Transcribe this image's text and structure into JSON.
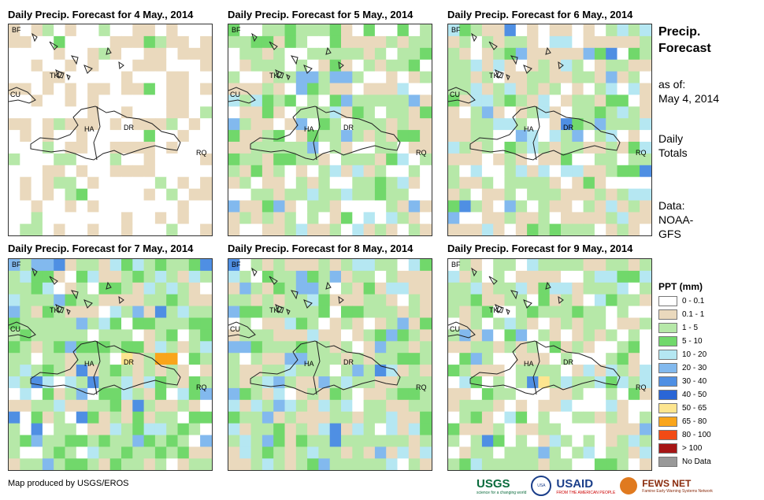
{
  "panels": [
    {
      "title": "Daily Precip. Forecast for 4 May., 2014",
      "pattern": 0
    },
    {
      "title": "Daily Precip. Forecast for 5 May., 2014",
      "pattern": 1
    },
    {
      "title": "Daily Precip. Forecast for 6 May., 2014",
      "pattern": 2
    },
    {
      "title": "Daily Precip. Forecast for 7 May., 2014",
      "pattern": 3
    },
    {
      "title": "Daily Precip. Forecast for 8 May., 2014",
      "pattern": 4
    },
    {
      "title": "Daily Precip. Forecast for 9 May., 2014",
      "pattern": 5
    }
  ],
  "map_labels": {
    "bf": "BF",
    "cu": "CU",
    "tk": "TK",
    "ha": "HA",
    "dr": "DR",
    "rq": "RQ"
  },
  "side_info": {
    "heading_line1": "Precip.",
    "heading_line2": "Forecast",
    "asof_label": "as of:",
    "asof_date": "May 4, 2014",
    "daily_line1": "Daily",
    "daily_line2": "Totals",
    "data_label": "Data:",
    "source_line1": "NOAA-",
    "source_line2": "GFS"
  },
  "legend": {
    "title": "PPT (mm)",
    "items": [
      {
        "label": "0 - 0.1",
        "color": "#ffffff"
      },
      {
        "label": "0.1 - 1",
        "color": "#ead9bd"
      },
      {
        "label": "1 - 5",
        "color": "#b6e8a8"
      },
      {
        "label": "5 - 10",
        "color": "#71d86b"
      },
      {
        "label": "10 - 20",
        "color": "#b5e7f2"
      },
      {
        "label": "20 - 30",
        "color": "#82b9ee"
      },
      {
        "label": "30 - 40",
        "color": "#4f8fe3"
      },
      {
        "label": "40 - 50",
        "color": "#2a66d6"
      },
      {
        "label": "50 - 65",
        "color": "#fde58f"
      },
      {
        "label": "65 - 80",
        "color": "#f9a51b"
      },
      {
        "label": "80 - 100",
        "color": "#f24b15"
      },
      {
        "label": "> 100",
        "color": "#a61515"
      },
      {
        "label": "No Data",
        "color": "#999999"
      }
    ]
  },
  "footer": {
    "credit": "Map produced by USGS/EROS"
  },
  "logos": {
    "usgs": "USGS",
    "usgs_tagline": "science for a changing world",
    "seal": "USA",
    "usaid": "USAID",
    "usaid_tagline": "FROM THE AMERICAN PEOPLE",
    "fews": "FEWS NET",
    "fews_tagline": "Famine Early Warning Systems Network"
  }
}
